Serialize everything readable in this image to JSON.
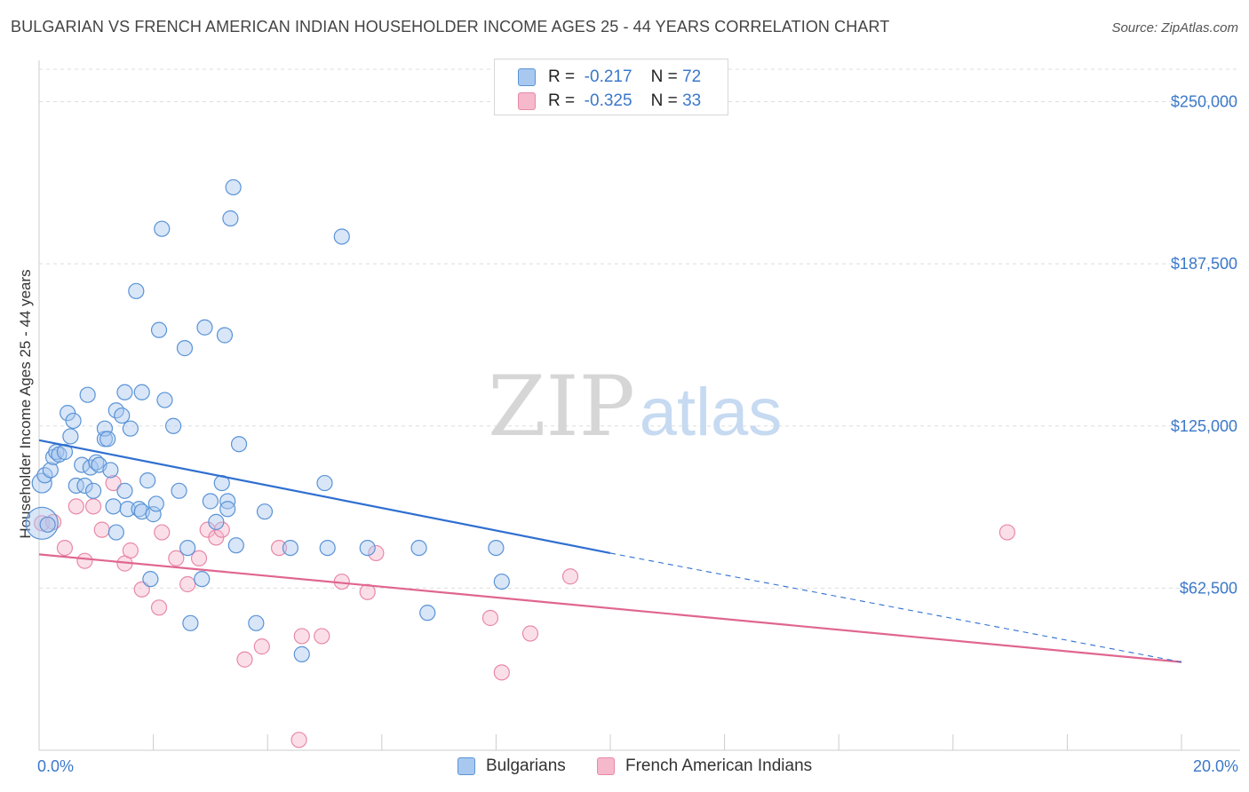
{
  "title": "BULGARIAN VS FRENCH AMERICAN INDIAN HOUSEHOLDER INCOME AGES 25 - 44 YEARS CORRELATION CHART",
  "source": "Source: ZipAtlas.com",
  "watermark": {
    "zip": "ZIP",
    "atlas": "atlas"
  },
  "legend_top": [
    {
      "r_label": "R =",
      "r_value": "-0.217",
      "n_label": "N =",
      "n_value": "72"
    },
    {
      "r_label": "R =",
      "r_value": "-0.325",
      "n_label": "N =",
      "n_value": "33"
    }
  ],
  "bottom_legend": [
    "Bulgarians",
    "French American Indians"
  ],
  "colors": {
    "blue_fill": "#a9c8f0",
    "blue_stroke": "#5a93d6",
    "blue_line": "#2f6fd0",
    "pink_fill": "#f6b8cb",
    "pink_stroke": "#e889a8",
    "pink_line": "#e0668f",
    "tick_label": "#3b78c9",
    "grid": "#dddddd"
  },
  "chart_data": {
    "type": "scatter",
    "title": "BULGARIAN VS FRENCH AMERICAN INDIAN HOUSEHOLDER INCOME AGES 25 - 44 YEARS CORRELATION CHART",
    "xlabel": "",
    "ylabel": "Householder Income Ages 25 - 44 years",
    "xlim": [
      0,
      20
    ],
    "ylim": [
      0,
      262500
    ],
    "x_tick_labels": [
      "0.0%",
      "20.0%"
    ],
    "y_ticks": [
      62500,
      125000,
      187500,
      250000
    ],
    "y_tick_labels": [
      "$62,500",
      "$125,000",
      "$187,500",
      "$250,000"
    ],
    "grid": "horizontal dashed",
    "series": [
      {
        "name": "Bulgarians",
        "r": -0.217,
        "n": 72,
        "trend": {
          "x0": 0,
          "y0": 119500,
          "x1": 10,
          "y1": 76000,
          "dashed_to_x": 20,
          "dashed_to_y": 34000
        },
        "points": [
          [
            0.05,
            87500
          ],
          [
            0.05,
            103000
          ],
          [
            0.1,
            106000
          ],
          [
            0.2,
            108000
          ],
          [
            0.25,
            113000
          ],
          [
            0.3,
            115000
          ],
          [
            0.35,
            114000
          ],
          [
            0.45,
            115000
          ],
          [
            0.5,
            130000
          ],
          [
            0.55,
            121000
          ],
          [
            0.6,
            127000
          ],
          [
            0.65,
            102000
          ],
          [
            0.75,
            110000
          ],
          [
            0.8,
            102000
          ],
          [
            0.85,
            137000
          ],
          [
            0.9,
            109000
          ],
          [
            0.95,
            100000
          ],
          [
            1.0,
            111000
          ],
          [
            1.05,
            110000
          ],
          [
            1.15,
            120000
          ],
          [
            1.15,
            124000
          ],
          [
            1.2,
            120000
          ],
          [
            1.25,
            108000
          ],
          [
            1.3,
            94000
          ],
          [
            1.35,
            84000
          ],
          [
            1.35,
            131000
          ],
          [
            1.45,
            129000
          ],
          [
            1.5,
            138000
          ],
          [
            1.5,
            100000
          ],
          [
            1.55,
            93000
          ],
          [
            1.6,
            124000
          ],
          [
            1.7,
            177000
          ],
          [
            1.75,
            93000
          ],
          [
            1.8,
            138000
          ],
          [
            1.8,
            92000
          ],
          [
            1.9,
            104000
          ],
          [
            1.95,
            66000
          ],
          [
            2.0,
            91000
          ],
          [
            2.05,
            95000
          ],
          [
            2.1,
            162000
          ],
          [
            2.15,
            201000
          ],
          [
            2.2,
            135000
          ],
          [
            2.35,
            125000
          ],
          [
            2.45,
            100000
          ],
          [
            2.55,
            155000
          ],
          [
            2.6,
            78000
          ],
          [
            2.65,
            49000
          ],
          [
            2.85,
            66000
          ],
          [
            2.9,
            163000
          ],
          [
            3.0,
            96000
          ],
          [
            3.1,
            88000
          ],
          [
            3.2,
            103000
          ],
          [
            3.25,
            160000
          ],
          [
            3.3,
            96000
          ],
          [
            3.3,
            93000
          ],
          [
            3.35,
            205000
          ],
          [
            3.4,
            217000
          ],
          [
            3.45,
            79000
          ],
          [
            3.5,
            118000
          ],
          [
            3.8,
            49000
          ],
          [
            3.95,
            92000
          ],
          [
            4.4,
            78000
          ],
          [
            4.6,
            37000
          ],
          [
            5.0,
            103000
          ],
          [
            5.05,
            78000
          ],
          [
            5.3,
            198000
          ],
          [
            5.75,
            78000
          ],
          [
            6.65,
            78000
          ],
          [
            6.8,
            53000
          ],
          [
            8.0,
            78000
          ],
          [
            8.1,
            65000
          ],
          [
            0.15,
            87000
          ]
        ]
      },
      {
        "name": "French American Indians",
        "r": -0.325,
        "n": 33,
        "trend": {
          "x0": 0,
          "y0": 75500,
          "x1": 20,
          "y1": 34000
        },
        "points": [
          [
            0.05,
            87500
          ],
          [
            0.25,
            88000
          ],
          [
            0.45,
            78000
          ],
          [
            0.65,
            94000
          ],
          [
            0.8,
            73000
          ],
          [
            0.95,
            94000
          ],
          [
            1.1,
            85000
          ],
          [
            1.3,
            103000
          ],
          [
            1.5,
            72000
          ],
          [
            1.6,
            77000
          ],
          [
            1.8,
            62000
          ],
          [
            2.1,
            55000
          ],
          [
            2.15,
            84000
          ],
          [
            2.4,
            74000
          ],
          [
            2.6,
            64000
          ],
          [
            2.8,
            74000
          ],
          [
            2.95,
            85000
          ],
          [
            3.1,
            82000
          ],
          [
            3.2,
            85000
          ],
          [
            3.6,
            35000
          ],
          [
            3.9,
            40000
          ],
          [
            4.2,
            78000
          ],
          [
            4.55,
            4000
          ],
          [
            4.6,
            44000
          ],
          [
            4.95,
            44000
          ],
          [
            5.3,
            65000
          ],
          [
            5.75,
            61000
          ],
          [
            5.9,
            76000
          ],
          [
            7.9,
            51000
          ],
          [
            8.1,
            30000
          ],
          [
            8.6,
            45000
          ],
          [
            9.3,
            67000
          ],
          [
            16.95,
            84000
          ]
        ]
      }
    ]
  }
}
